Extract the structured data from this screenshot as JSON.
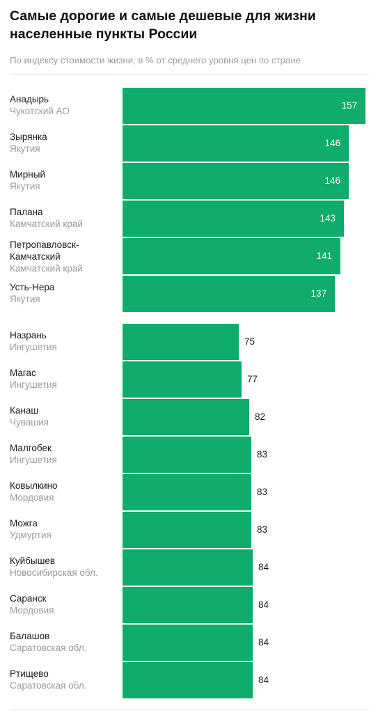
{
  "title": "Самые дорогие и самые дешевые для жизни населенные пункты России",
  "subtitle": "По индексу стоимости жизни, в % от среднего уровня цен по стране",
  "colors": {
    "bar": "#0fac6c",
    "text": "#1a1a1a",
    "muted": "#9a9a9a"
  },
  "chart_data": {
    "type": "bar",
    "orientation": "horizontal",
    "value_labels": "shown",
    "groups": [
      {
        "items": [
          {
            "city": "Анадырь",
            "region": "Чукотский АО",
            "value": 157
          },
          {
            "city": "Зырянка",
            "region": "Якутия",
            "value": 146
          },
          {
            "city": "Мирный",
            "region": "Якутия",
            "value": 146
          },
          {
            "city": "Палана",
            "region": "Камчатский край",
            "value": 143
          },
          {
            "city": "Петропавловск-Камчатский",
            "region": "Камчатский край",
            "value": 141
          },
          {
            "city": "Усть-Нера",
            "region": "Якутия",
            "value": 137
          }
        ]
      },
      {
        "items": [
          {
            "city": "Назрань",
            "region": "Ингушетия",
            "value": 75
          },
          {
            "city": "Магас",
            "region": "Ингушетия",
            "value": 77
          },
          {
            "city": "Канаш",
            "region": "Чувашия",
            "value": 82
          },
          {
            "city": "Малгобек",
            "region": "Ингушетия",
            "value": 83
          },
          {
            "city": "Ковылкино",
            "region": "Мордовия",
            "value": 83
          },
          {
            "city": "Можга",
            "region": "Удмуртия",
            "value": 83
          },
          {
            "city": "Куйбышев",
            "region": "Новосибирская обл.",
            "value": 84
          },
          {
            "city": "Саранск",
            "region": "Мордовия",
            "value": 84
          },
          {
            "city": "Балашов",
            "region": "Саратовская обл.",
            "value": 84
          },
          {
            "city": "Ртищево",
            "region": "Саратовская обл.",
            "value": 84
          }
        ]
      }
    ]
  }
}
